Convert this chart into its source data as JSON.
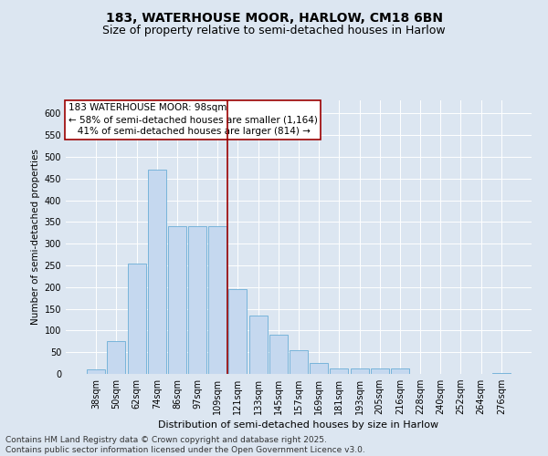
{
  "title1": "183, WATERHOUSE MOOR, HARLOW, CM18 6BN",
  "title2": "Size of property relative to semi-detached houses in Harlow",
  "xlabel": "Distribution of semi-detached houses by size in Harlow",
  "ylabel": "Number of semi-detached properties",
  "categories": [
    "38sqm",
    "50sqm",
    "62sqm",
    "74sqm",
    "86sqm",
    "97sqm",
    "109sqm",
    "121sqm",
    "133sqm",
    "145sqm",
    "157sqm",
    "169sqm",
    "181sqm",
    "193sqm",
    "205sqm",
    "216sqm",
    "228sqm",
    "240sqm",
    "252sqm",
    "264sqm",
    "276sqm"
  ],
  "values": [
    10,
    75,
    255,
    470,
    340,
    340,
    340,
    195,
    135,
    90,
    55,
    25,
    12,
    12,
    12,
    12,
    0,
    0,
    0,
    0,
    3
  ],
  "bar_color": "#c5d8ef",
  "bar_edge_color": "#6aaed6",
  "vline_position": 6.5,
  "vline_color": "#9b0000",
  "annotation_text": "183 WATERHOUSE MOOR: 98sqm\n← 58% of semi-detached houses are smaller (1,164)\n   41% of semi-detached houses are larger (814) →",
  "annotation_box_facecolor": "white",
  "annotation_box_edgecolor": "#9b0000",
  "background_color": "#dce6f1",
  "plot_bg_color": "#dce6f1",
  "footer": "Contains HM Land Registry data © Crown copyright and database right 2025.\nContains public sector information licensed under the Open Government Licence v3.0.",
  "ylim": [
    0,
    630
  ],
  "yticks": [
    0,
    50,
    100,
    150,
    200,
    250,
    300,
    350,
    400,
    450,
    500,
    550,
    600
  ],
  "title1_fontsize": 10,
  "title2_fontsize": 9,
  "xlabel_fontsize": 8,
  "ylabel_fontsize": 7.5,
  "tick_fontsize": 7,
  "annotation_fontsize": 7.5,
  "footer_fontsize": 6.5
}
